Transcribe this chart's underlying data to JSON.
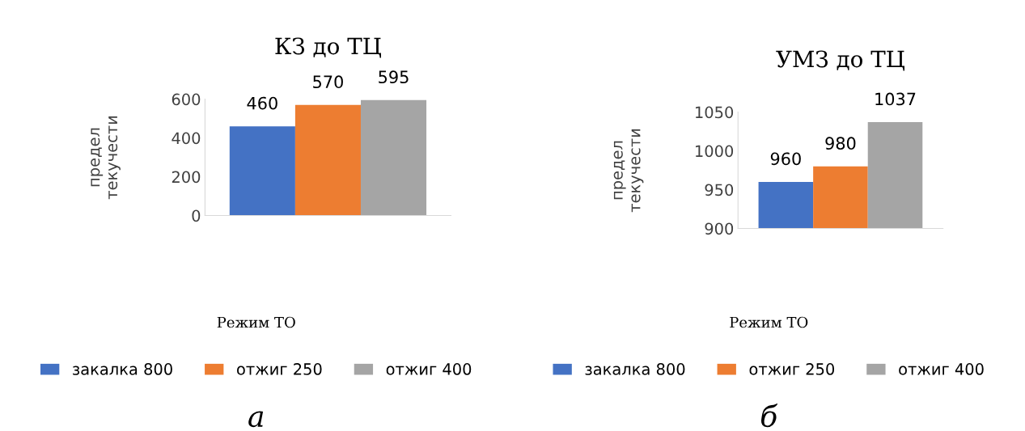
{
  "chart_data": [
    {
      "type": "bar",
      "title": "КЗ до ТЦ",
      "xlabel": "Режим ТО",
      "ylabel": "предел\nтекучести",
      "categories": [
        null
      ],
      "series": [
        {
          "name": "закалка 800",
          "color": "#4472c4",
          "values": [
            460
          ]
        },
        {
          "name": "отжиг 250",
          "color": "#ed7d31",
          "values": [
            570
          ]
        },
        {
          "name": "отжиг 400",
          "color": "#a5a5a5",
          "values": [
            595
          ]
        }
      ],
      "ylim": [
        0,
        600
      ],
      "yticks": [
        0,
        200,
        400,
        600
      ],
      "data_labels": true,
      "grid": false,
      "legend": "bottom",
      "annotations": [
        "а"
      ]
    },
    {
      "type": "bar",
      "title": "УМЗ до ТЦ",
      "xlabel": "Режим ТО",
      "ylabel": "предел\nтекучести",
      "categories": [
        null
      ],
      "series": [
        {
          "name": "закалка 800",
          "color": "#4472c4",
          "values": [
            960
          ]
        },
        {
          "name": "отжиг 250",
          "color": "#ed7d31",
          "values": [
            980
          ]
        },
        {
          "name": "отжиг 400",
          "color": "#a5a5a5",
          "values": [
            1037
          ]
        }
      ],
      "ylim": [
        900,
        1050
      ],
      "yticks": [
        900,
        950,
        1000,
        1050
      ],
      "data_labels": true,
      "grid": false,
      "legend": "bottom",
      "annotations": [
        "б"
      ]
    }
  ]
}
